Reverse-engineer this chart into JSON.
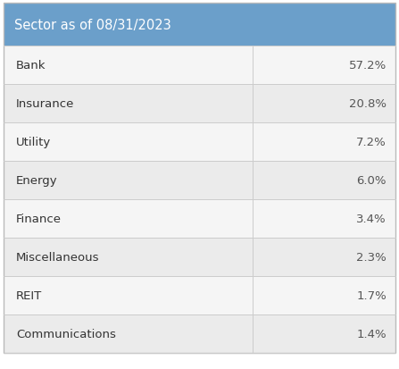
{
  "title": "Sector as of 08/31/2023",
  "header_bg_color": "#6b9fca",
  "header_text_color": "#ffffff",
  "divider_color": "#cccccc",
  "left_text_color": "#333333",
  "right_text_color": "#555555",
  "sectors": [
    "Bank",
    "Insurance",
    "Utility",
    "Energy",
    "Finance",
    "Miscellaneous",
    "REIT",
    "Communications"
  ],
  "values": [
    "57.2%",
    "20.8%",
    "7.2%",
    "6.0%",
    "3.4%",
    "2.3%",
    "1.7%",
    "1.4%"
  ],
  "col_split": 0.635,
  "font_size": 9.5,
  "title_font_size": 10.5,
  "outer_border_color": "#bbbbbb",
  "background_color": "#ffffff",
  "row_bg_even": "#f5f5f5",
  "row_bg_odd": "#ebebeb"
}
